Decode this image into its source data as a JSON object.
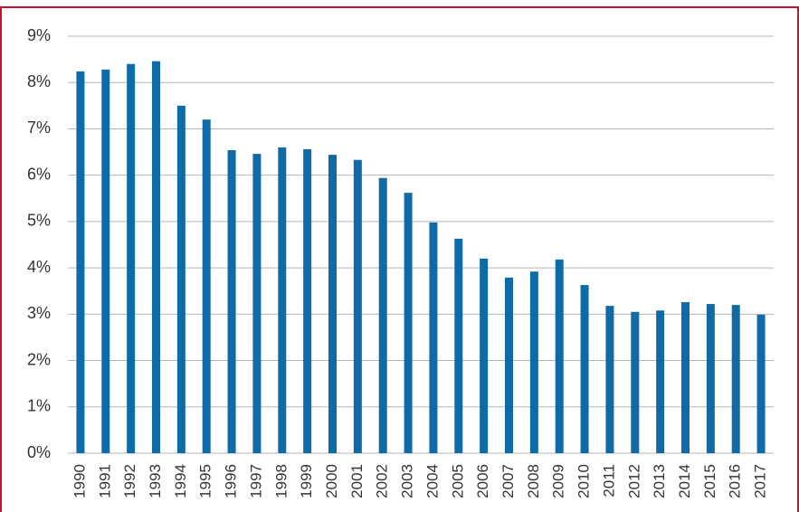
{
  "chart_data": {
    "type": "bar",
    "categories": [
      "1990",
      "1991",
      "1992",
      "1993",
      "1994",
      "1995",
      "1996",
      "1997",
      "1998",
      "1999",
      "2000",
      "2001",
      "2002",
      "2003",
      "2004",
      "2005",
      "2006",
      "2007",
      "2008",
      "2009",
      "2010",
      "2011",
      "2012",
      "2013",
      "2014",
      "2015",
      "2016",
      "2017"
    ],
    "values": [
      8.24,
      8.28,
      8.4,
      8.46,
      7.5,
      7.2,
      6.54,
      6.46,
      6.6,
      6.56,
      6.44,
      6.33,
      5.94,
      5.62,
      4.98,
      4.63,
      4.2,
      3.79,
      3.92,
      4.18,
      3.63,
      3.18,
      3.05,
      3.08,
      3.26,
      3.22,
      3.2,
      2.99
    ],
    "color": "#0f6ba8",
    "ylim": [
      0,
      9
    ],
    "yticks": [
      {
        "value": 0,
        "label": "0%"
      },
      {
        "value": 1,
        "label": "1%"
      },
      {
        "value": 2,
        "label": "2%"
      },
      {
        "value": 3,
        "label": "3%"
      },
      {
        "value": 4,
        "label": "4%"
      },
      {
        "value": 5,
        "label": "5%"
      },
      {
        "value": 6,
        "label": "6%"
      },
      {
        "value": 7,
        "label": "7%"
      },
      {
        "value": 8,
        "label": "8%"
      },
      {
        "value": 9,
        "label": "9%"
      }
    ],
    "grid": true
  }
}
